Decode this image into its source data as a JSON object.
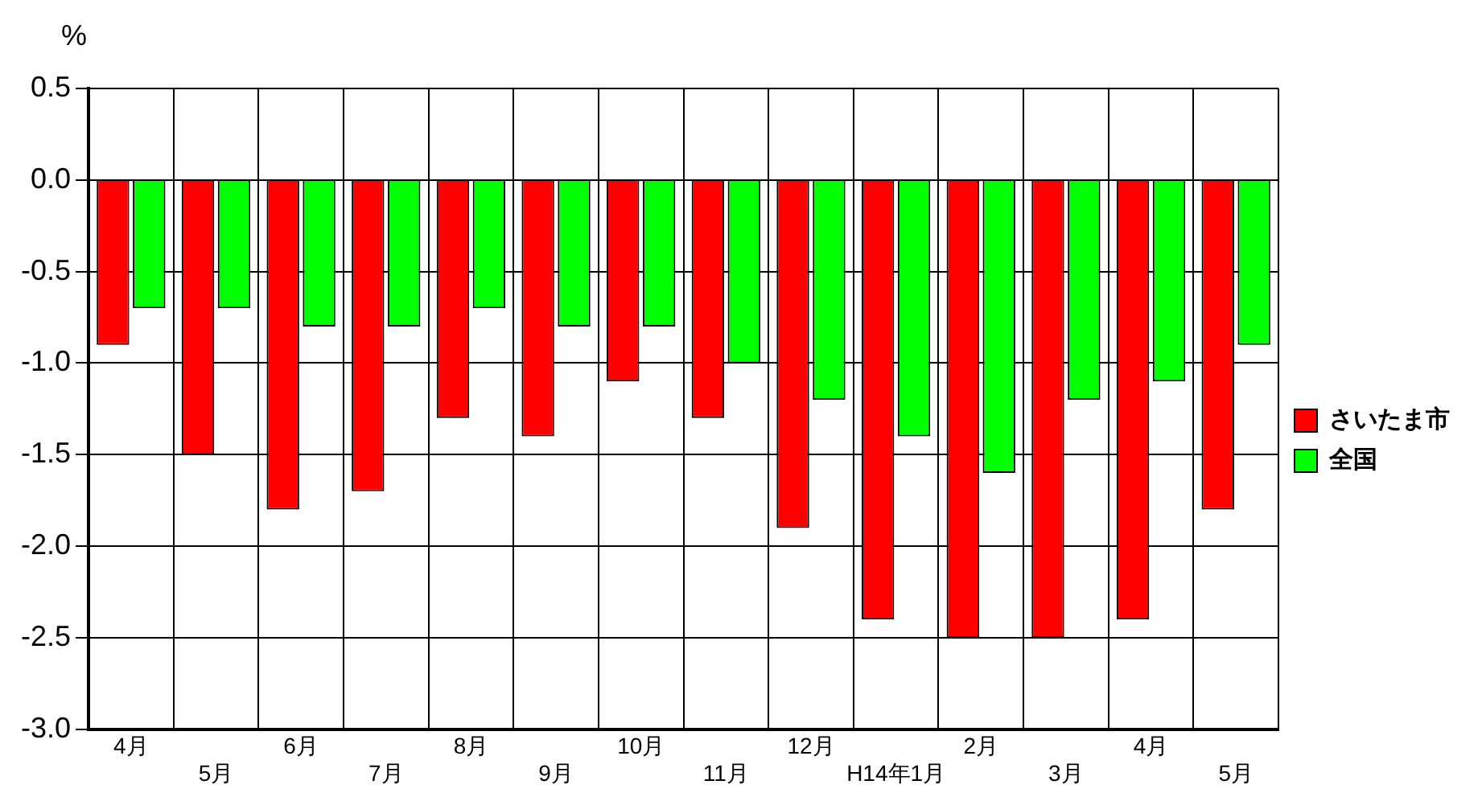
{
  "chart_data": {
    "type": "bar",
    "ylabel": "%",
    "categories": [
      "4月",
      "5月",
      "6月",
      "7月",
      "8月",
      "9月",
      "10月",
      "11月",
      "12月",
      "H14年1月",
      "2月",
      "3月",
      "4月",
      "5月"
    ],
    "series": [
      {
        "name": "さいたま市",
        "color": "#ff0000",
        "values": [
          -0.9,
          -1.5,
          -1.8,
          -1.7,
          -1.3,
          -1.4,
          -1.1,
          -1.3,
          -1.9,
          -2.4,
          -2.5,
          -2.5,
          -2.4,
          -1.8
        ]
      },
      {
        "name": "全国",
        "color": "#00ff00",
        "values": [
          -0.7,
          -0.7,
          -0.8,
          -0.8,
          -0.7,
          -0.8,
          -0.8,
          -1.0,
          -1.2,
          -1.4,
          -1.6,
          -1.2,
          -1.1,
          -0.9
        ]
      }
    ],
    "ylim": [
      -3.0,
      0.5
    ],
    "yticks": [
      {
        "value": 0.5,
        "label": "0.5"
      },
      {
        "value": 0.0,
        "label": "0.0"
      },
      {
        "value": -0.5,
        "label": "-0.5"
      },
      {
        "value": -1.0,
        "label": "-1.0"
      },
      {
        "value": -1.5,
        "label": "-1.5"
      },
      {
        "value": -2.0,
        "label": "-2.0"
      },
      {
        "value": -2.5,
        "label": "-2.5"
      },
      {
        "value": -3.0,
        "label": "-3.0"
      }
    ],
    "grid": true,
    "legend": "right"
  }
}
